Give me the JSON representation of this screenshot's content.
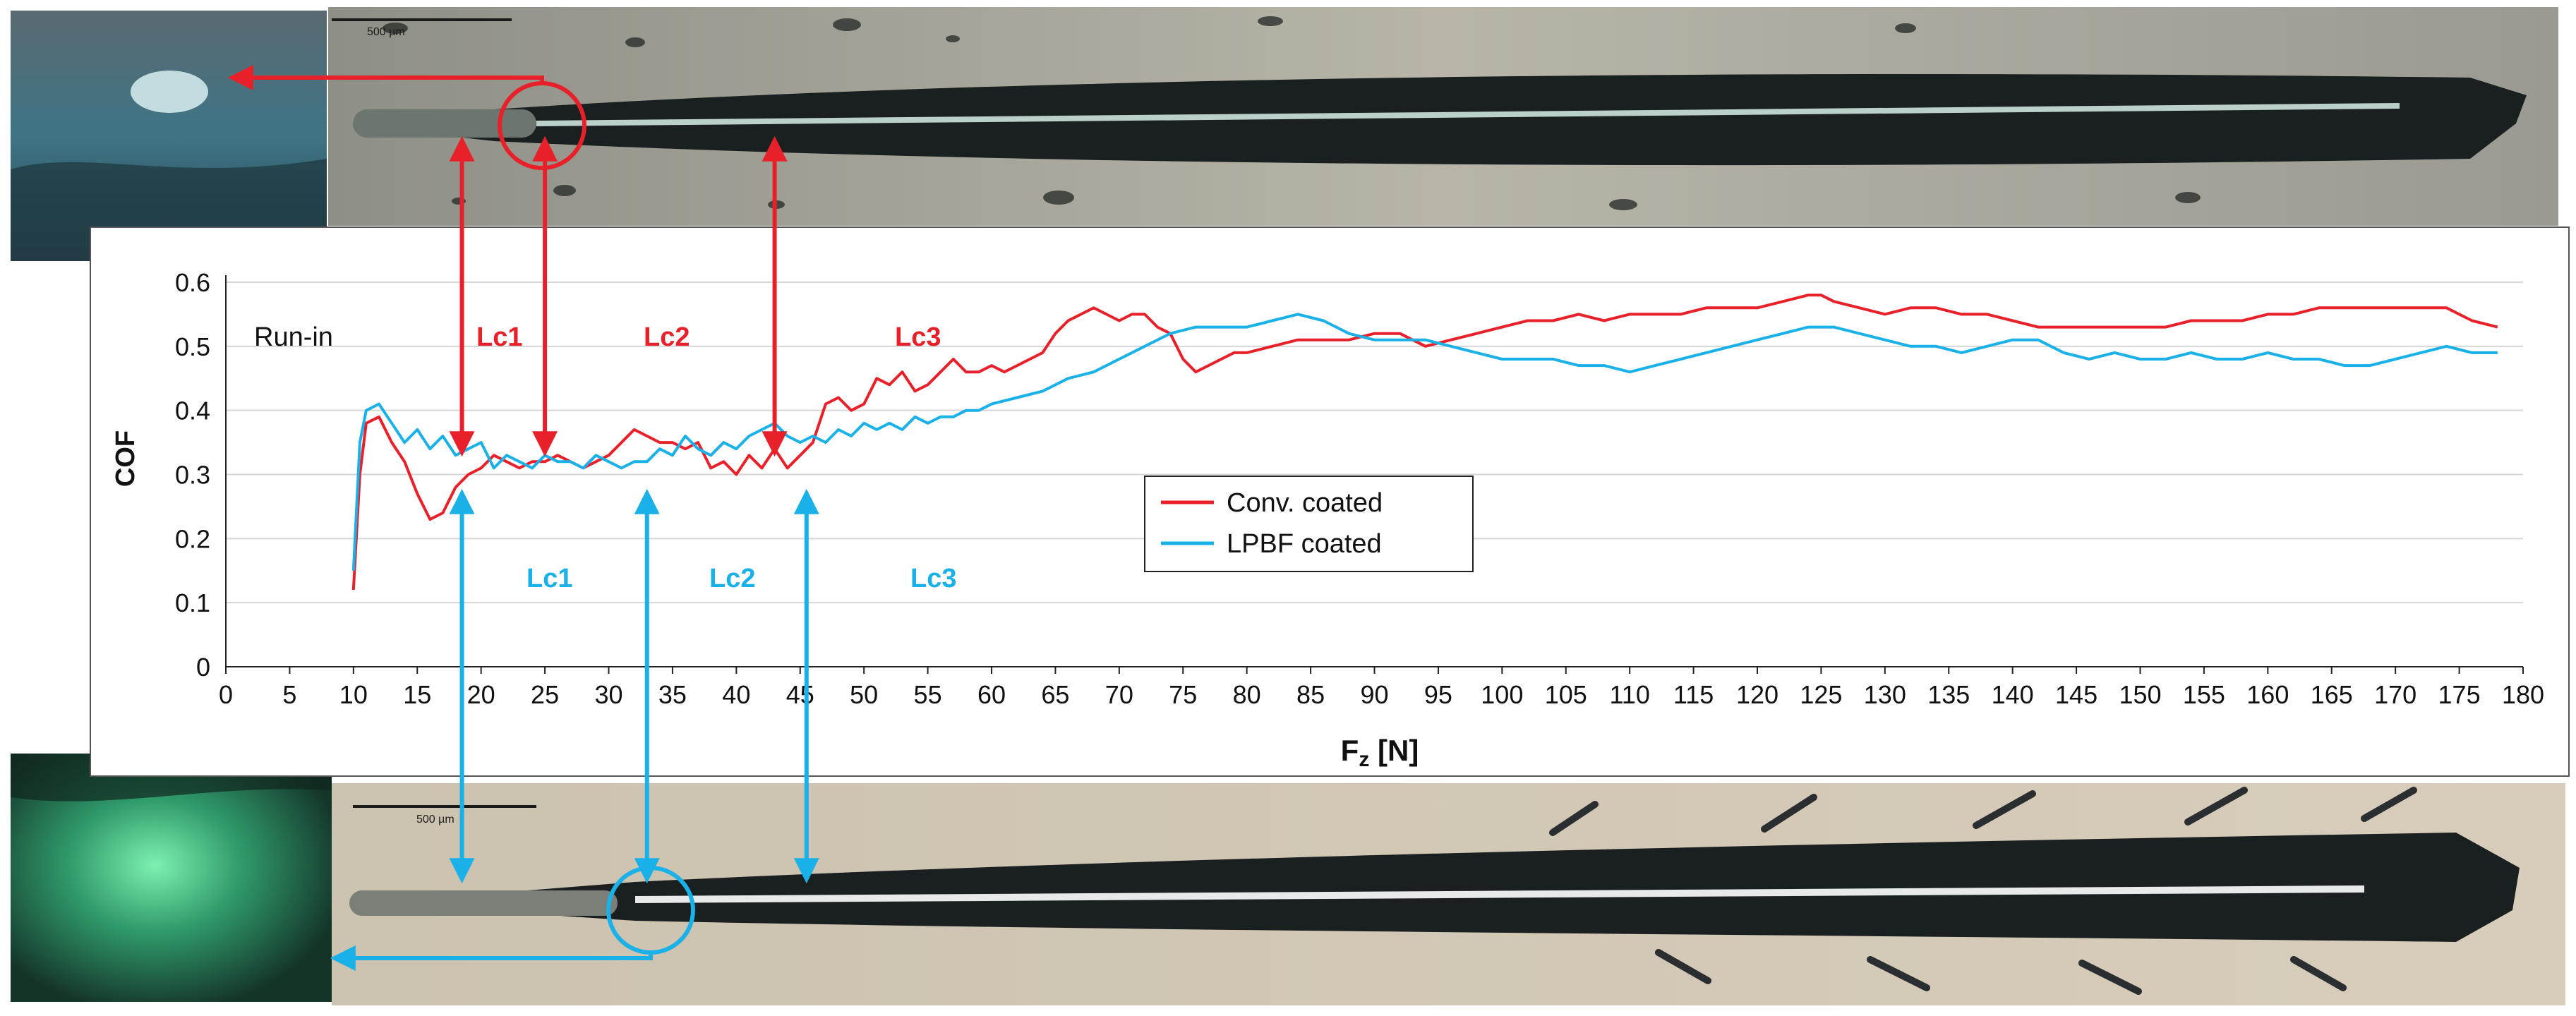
{
  "colors": {
    "conv": "#e8202a",
    "lpbf": "#1ab0e8",
    "grid": "#d6d6d6",
    "axis": "#222222",
    "text": "#111111"
  },
  "annotations": {
    "run_in": "Run-in",
    "conv_labels": [
      "Lc1",
      "Lc2",
      "Lc3"
    ],
    "lpbf_labels": [
      "Lc1",
      "Lc2",
      "Lc3"
    ],
    "scale_bar_top": "500 µm",
    "scale_bar_bottom": "500 µm"
  },
  "markers": {
    "conv_lc_fz": [
      18.5,
      25,
      43
    ],
    "lpbf_lc_fz": [
      18.5,
      33,
      45.5
    ]
  },
  "chart_data": {
    "type": "line",
    "xlabel": "Fz [N]",
    "ylabel": "COF",
    "xlim": [
      0,
      180
    ],
    "ylim": [
      0,
      0.6
    ],
    "xticks": [
      "0",
      "5",
      "10",
      "15",
      "20",
      "25",
      "30",
      "35",
      "40",
      "45",
      "50",
      "55",
      "60",
      "65",
      "70",
      "75",
      "80",
      "85",
      "90",
      "95",
      "100",
      "105",
      "110",
      "115",
      "120",
      "125",
      "130",
      "135",
      "140",
      "145",
      "150",
      "155",
      "160",
      "165",
      "170",
      "175",
      "180"
    ],
    "yticks": [
      "0",
      "0.1",
      "0.2",
      "0.3",
      "0.4",
      "0.5",
      "0.6"
    ],
    "grid": "horizontal",
    "legend_position": "center",
    "series": [
      {
        "name": "Conv. coated",
        "x": [
          10,
          10.5,
          11,
          12,
          13,
          14,
          15,
          16,
          17,
          18,
          19,
          20,
          21,
          22,
          23,
          24,
          25,
          26,
          27,
          28,
          29,
          30,
          31,
          32,
          33,
          34,
          35,
          36,
          37,
          38,
          39,
          40,
          41,
          42,
          43,
          44,
          45,
          46,
          47,
          48,
          49,
          50,
          51,
          52,
          53,
          54,
          55,
          56,
          57,
          58,
          59,
          60,
          61,
          62,
          63,
          64,
          65,
          66,
          67,
          68,
          69,
          70,
          71,
          72,
          73,
          74,
          75,
          76,
          77,
          78,
          79,
          80,
          82,
          84,
          86,
          88,
          90,
          92,
          94,
          96,
          98,
          100,
          102,
          104,
          106,
          108,
          110,
          112,
          114,
          116,
          118,
          120,
          122,
          124,
          125,
          126,
          128,
          130,
          132,
          134,
          136,
          138,
          140,
          142,
          144,
          146,
          148,
          150,
          152,
          154,
          156,
          158,
          160,
          162,
          164,
          166,
          168,
          170,
          172,
          174,
          176,
          178
        ],
        "y": [
          0.12,
          0.3,
          0.38,
          0.39,
          0.35,
          0.32,
          0.27,
          0.23,
          0.24,
          0.28,
          0.3,
          0.31,
          0.33,
          0.32,
          0.31,
          0.32,
          0.32,
          0.33,
          0.32,
          0.31,
          0.32,
          0.33,
          0.35,
          0.37,
          0.36,
          0.35,
          0.35,
          0.34,
          0.35,
          0.31,
          0.32,
          0.3,
          0.33,
          0.31,
          0.34,
          0.31,
          0.33,
          0.35,
          0.41,
          0.42,
          0.4,
          0.41,
          0.45,
          0.44,
          0.46,
          0.43,
          0.44,
          0.46,
          0.48,
          0.46,
          0.46,
          0.47,
          0.46,
          0.47,
          0.48,
          0.49,
          0.52,
          0.54,
          0.55,
          0.56,
          0.55,
          0.54,
          0.55,
          0.55,
          0.53,
          0.52,
          0.48,
          0.46,
          0.47,
          0.48,
          0.49,
          0.49,
          0.5,
          0.51,
          0.51,
          0.51,
          0.52,
          0.52,
          0.5,
          0.51,
          0.52,
          0.53,
          0.54,
          0.54,
          0.55,
          0.54,
          0.55,
          0.55,
          0.55,
          0.56,
          0.56,
          0.56,
          0.57,
          0.58,
          0.58,
          0.57,
          0.56,
          0.55,
          0.56,
          0.56,
          0.55,
          0.55,
          0.54,
          0.53,
          0.53,
          0.53,
          0.53,
          0.53,
          0.53,
          0.54,
          0.54,
          0.54,
          0.55,
          0.55,
          0.56,
          0.56,
          0.56,
          0.56,
          0.56,
          0.56,
          0.54,
          0.53
        ]
      },
      {
        "name": "LPBF coated",
        "x": [
          10,
          10.5,
          11,
          12,
          13,
          14,
          15,
          16,
          17,
          18,
          19,
          20,
          21,
          22,
          23,
          24,
          25,
          26,
          27,
          28,
          29,
          30,
          31,
          32,
          33,
          34,
          35,
          36,
          37,
          38,
          39,
          40,
          41,
          42,
          43,
          44,
          45,
          46,
          47,
          48,
          49,
          50,
          51,
          52,
          53,
          54,
          55,
          56,
          57,
          58,
          59,
          60,
          62,
          64,
          66,
          68,
          70,
          72,
          74,
          76,
          78,
          80,
          82,
          84,
          86,
          88,
          90,
          92,
          94,
          96,
          98,
          100,
          102,
          104,
          106,
          108,
          110,
          112,
          114,
          116,
          118,
          120,
          122,
          124,
          126,
          128,
          130,
          132,
          134,
          136,
          138,
          140,
          142,
          144,
          146,
          148,
          150,
          152,
          154,
          156,
          158,
          160,
          162,
          164,
          166,
          168,
          170,
          172,
          174,
          176,
          178
        ],
        "y": [
          0.15,
          0.35,
          0.4,
          0.41,
          0.38,
          0.35,
          0.37,
          0.34,
          0.36,
          0.33,
          0.34,
          0.35,
          0.31,
          0.33,
          0.32,
          0.31,
          0.33,
          0.32,
          0.32,
          0.31,
          0.33,
          0.32,
          0.31,
          0.32,
          0.32,
          0.34,
          0.33,
          0.36,
          0.34,
          0.33,
          0.35,
          0.34,
          0.36,
          0.37,
          0.38,
          0.36,
          0.35,
          0.36,
          0.35,
          0.37,
          0.36,
          0.38,
          0.37,
          0.38,
          0.37,
          0.39,
          0.38,
          0.39,
          0.39,
          0.4,
          0.4,
          0.41,
          0.42,
          0.43,
          0.45,
          0.46,
          0.48,
          0.5,
          0.52,
          0.53,
          0.53,
          0.53,
          0.54,
          0.55,
          0.54,
          0.52,
          0.51,
          0.51,
          0.51,
          0.5,
          0.49,
          0.48,
          0.48,
          0.48,
          0.47,
          0.47,
          0.46,
          0.47,
          0.48,
          0.49,
          0.5,
          0.51,
          0.52,
          0.53,
          0.53,
          0.52,
          0.51,
          0.5,
          0.5,
          0.49,
          0.5,
          0.51,
          0.51,
          0.49,
          0.48,
          0.49,
          0.48,
          0.48,
          0.49,
          0.48,
          0.48,
          0.49,
          0.48,
          0.48,
          0.47,
          0.47,
          0.48,
          0.49,
          0.5,
          0.49,
          0.49
        ]
      }
    ]
  }
}
